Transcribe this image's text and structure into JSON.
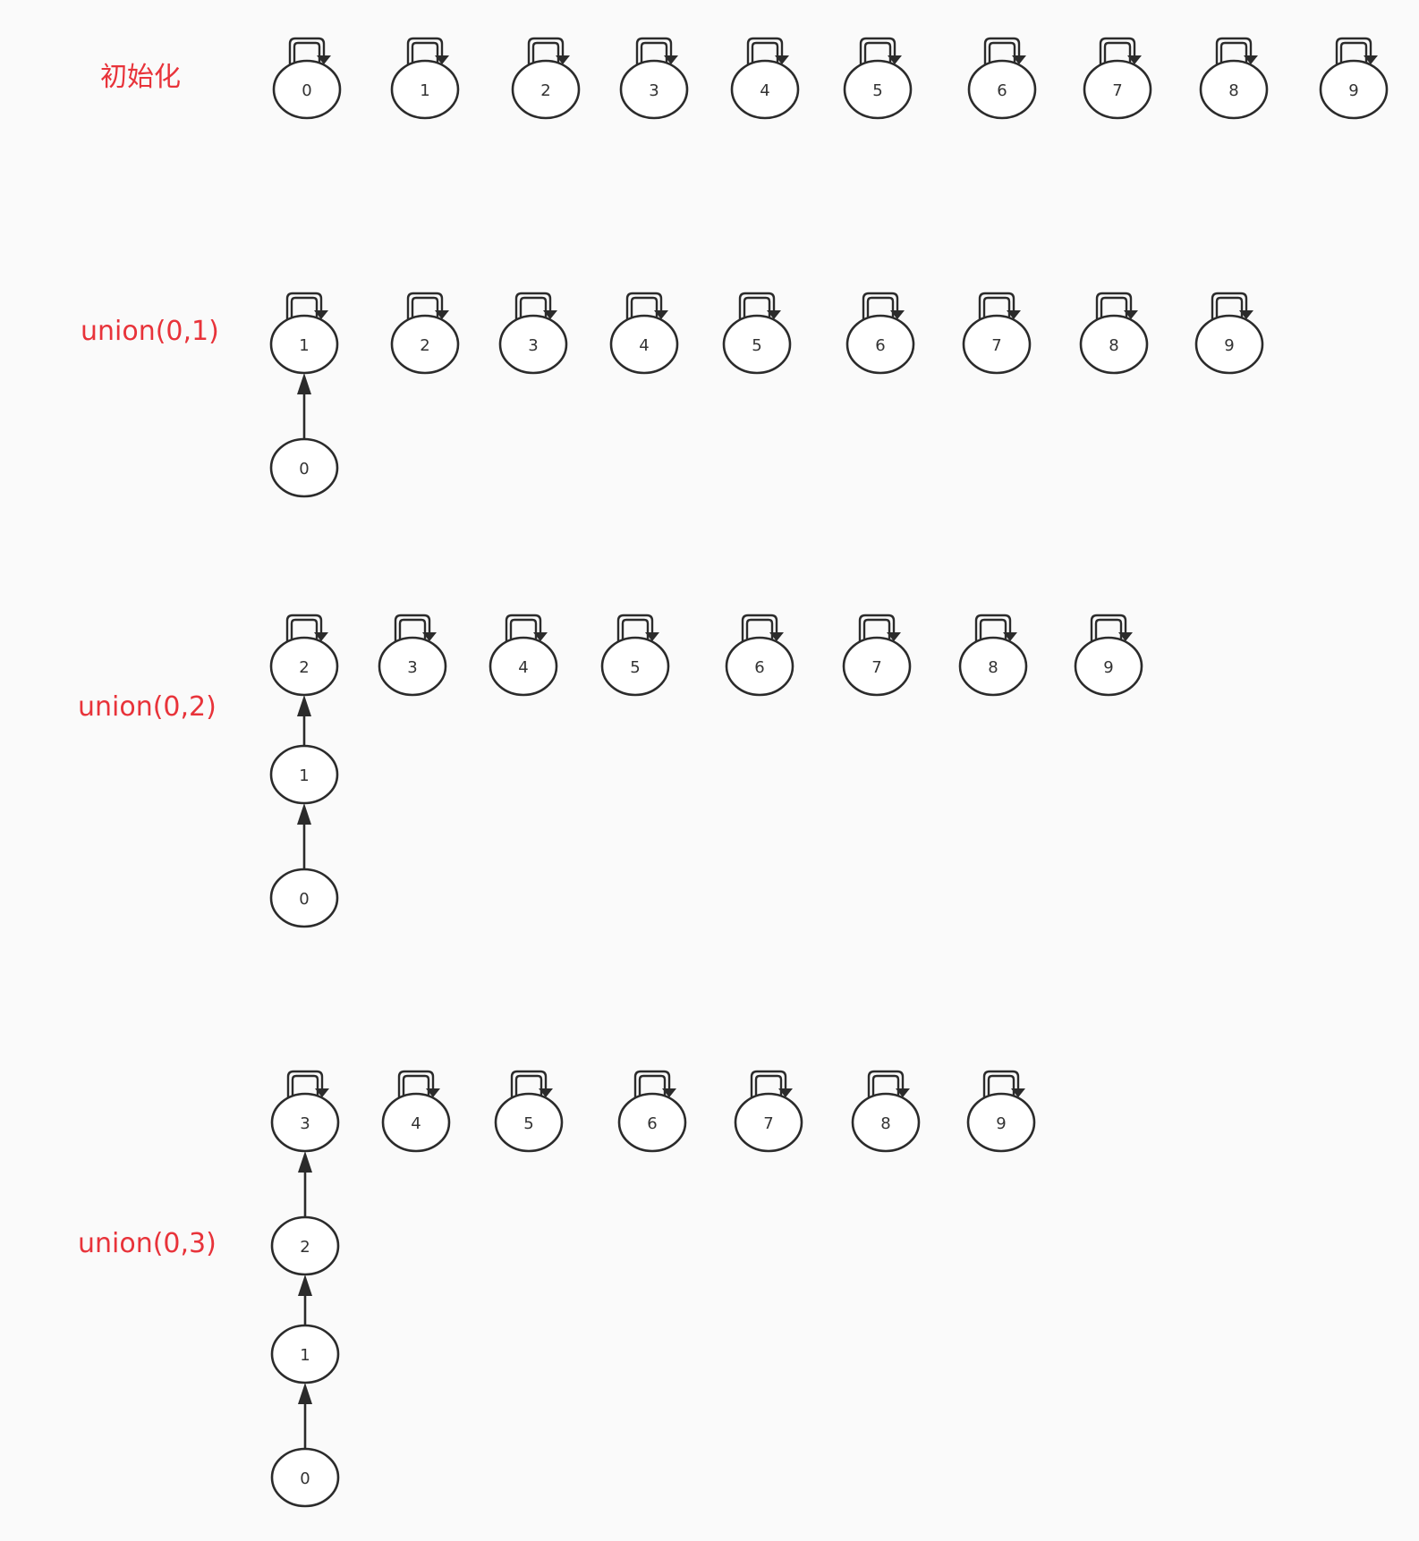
{
  "colors": {
    "label": "#e8333a",
    "stroke": "#2b2b2b",
    "node_fill": "#ffffff",
    "background": "#fafafa"
  },
  "rows": [
    {
      "label": "初始化",
      "roots": [
        "0",
        "1",
        "2",
        "3",
        "4",
        "5",
        "6",
        "7",
        "8",
        "9"
      ],
      "chain": []
    },
    {
      "label": "union(0,1)",
      "roots": [
        "1",
        "2",
        "3",
        "4",
        "5",
        "6",
        "7",
        "8",
        "9"
      ],
      "chain": [
        "0"
      ]
    },
    {
      "label": "union(0,2)",
      "roots": [
        "2",
        "3",
        "4",
        "5",
        "6",
        "7",
        "8",
        "9"
      ],
      "chain": [
        "1",
        "0"
      ]
    },
    {
      "label": "union(0,3)",
      "roots": [
        "3",
        "4",
        "5",
        "6",
        "7",
        "8",
        "9"
      ],
      "chain": [
        "2",
        "1",
        "0"
      ]
    }
  ]
}
